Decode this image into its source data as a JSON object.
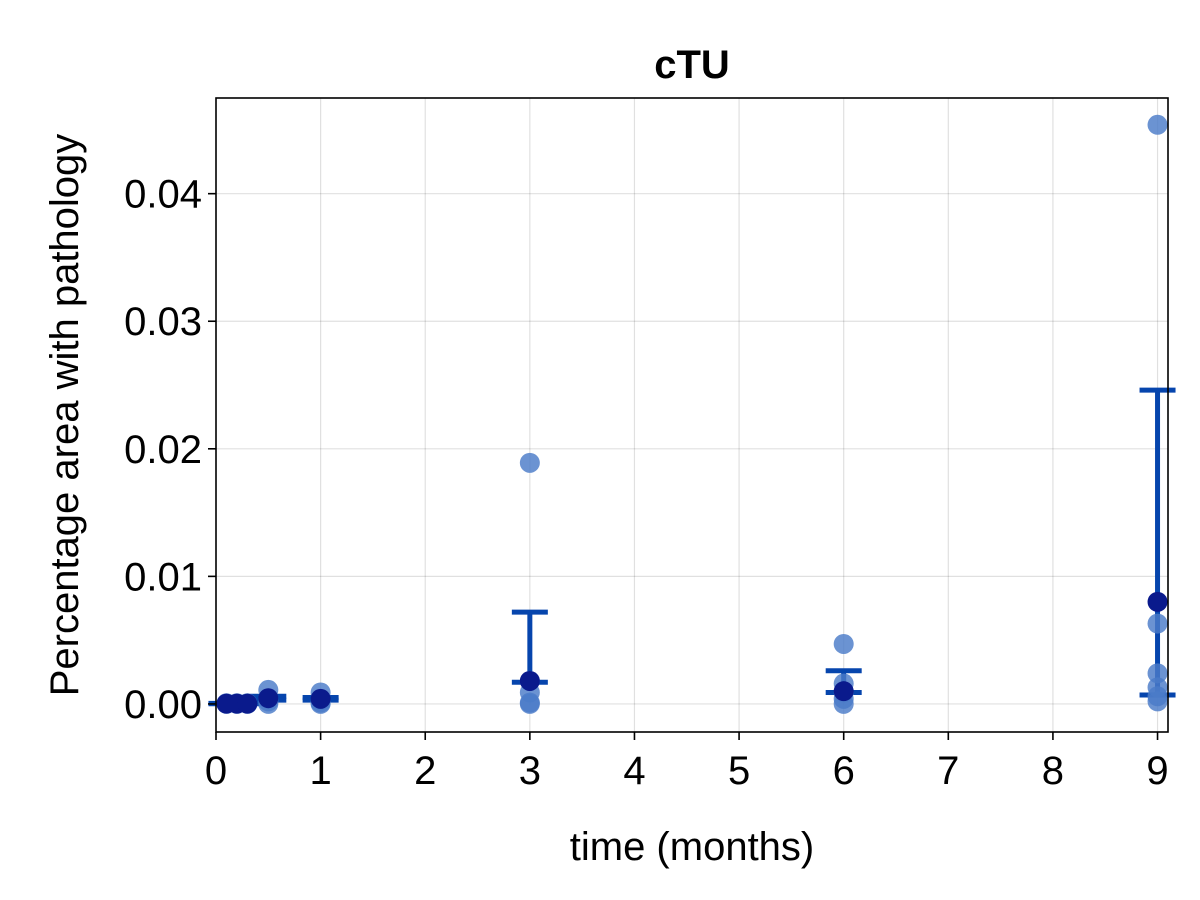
{
  "chart_data": {
    "type": "scatter",
    "title": "cTU",
    "xlabel": "time (months)",
    "ylabel": "Percentage area with pathology",
    "xlim": [
      0,
      9.1
    ],
    "ylim": [
      -0.0022,
      0.0475
    ],
    "xticks": [
      0,
      1,
      2,
      3,
      4,
      5,
      6,
      7,
      8,
      9
    ],
    "xtick_labels": [
      "0",
      "1",
      "2",
      "3",
      "4",
      "5",
      "6",
      "7",
      "8",
      "9"
    ],
    "yticks": [
      0,
      0.01,
      0.02,
      0.03,
      0.04
    ],
    "ytick_labels": [
      "0.00",
      "0.01",
      "0.02",
      "0.03",
      "0.04"
    ],
    "grid": true,
    "colors": {
      "points": "#4a7bc8",
      "mean": "#0a1a8c",
      "errorbar": "#0645ad"
    },
    "points": [
      {
        "x": 0.1,
        "y": 0
      },
      {
        "x": 0.1,
        "y": 5e-05
      },
      {
        "x": 0.2,
        "y": 0
      },
      {
        "x": 0.2,
        "y": 5e-05
      },
      {
        "x": 0.3,
        "y": 0
      },
      {
        "x": 0.3,
        "y": 5e-05
      },
      {
        "x": 0.5,
        "y": 0
      },
      {
        "x": 0.5,
        "y": 0.0002
      },
      {
        "x": 0.5,
        "y": 0.0004
      },
      {
        "x": 0.5,
        "y": 0.0011
      },
      {
        "x": 1,
        "y": 0
      },
      {
        "x": 1,
        "y": 0.0001
      },
      {
        "x": 1,
        "y": 0.0003
      },
      {
        "x": 1,
        "y": 0.0009
      },
      {
        "x": 3,
        "y": 0
      },
      {
        "x": 3,
        "y": 0.0001
      },
      {
        "x": 3,
        "y": 0.0009
      },
      {
        "x": 3,
        "y": 0.0018
      },
      {
        "x": 3,
        "y": 0.0189
      },
      {
        "x": 6,
        "y": 0
      },
      {
        "x": 6,
        "y": 0.0004
      },
      {
        "x": 6,
        "y": 0.0009
      },
      {
        "x": 6,
        "y": 0.0016
      },
      {
        "x": 6,
        "y": 0.0047
      },
      {
        "x": 9,
        "y": 0.0002
      },
      {
        "x": 9,
        "y": 0.0006
      },
      {
        "x": 9,
        "y": 0.0013
      },
      {
        "x": 9,
        "y": 0.0024
      },
      {
        "x": 9,
        "y": 0.0063
      },
      {
        "x": 9,
        "y": 0.0454
      }
    ],
    "summary": [
      {
        "x": 0.1,
        "mean": 2e-05,
        "lower": 1e-05,
        "upper": 4e-05
      },
      {
        "x": 0.2,
        "mean": 2e-05,
        "lower": 1e-05,
        "upper": 4e-05
      },
      {
        "x": 0.3,
        "mean": 2e-05,
        "lower": 1e-05,
        "upper": 4e-05
      },
      {
        "x": 0.5,
        "mean": 0.00045,
        "lower": 0.0003,
        "upper": 0.0006
      },
      {
        "x": 1,
        "mean": 0.0004,
        "lower": 0.0003,
        "upper": 0.0005
      },
      {
        "x": 3,
        "mean": 0.0018,
        "lower": 0.0017,
        "upper": 0.0072
      },
      {
        "x": 6,
        "mean": 0.001,
        "lower": 0.0009,
        "upper": 0.0026
      },
      {
        "x": 9,
        "mean": 0.008,
        "lower": 0.0007,
        "upper": 0.0246
      }
    ]
  }
}
